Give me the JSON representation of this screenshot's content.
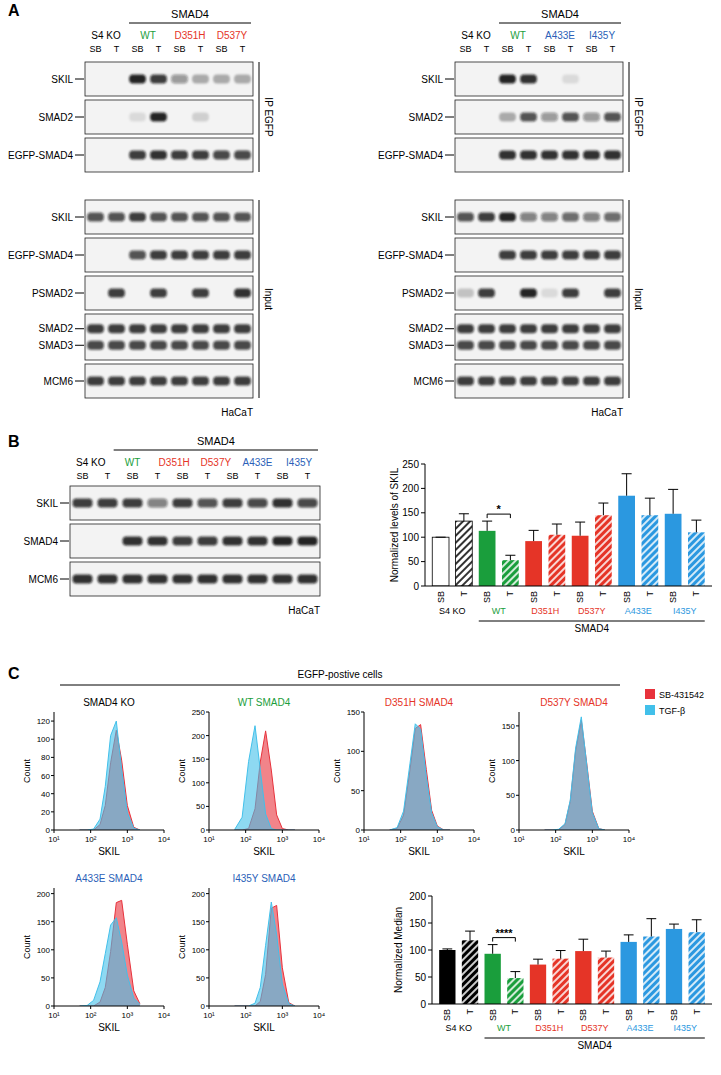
{
  "panel_labels": [
    "A",
    "B",
    "C"
  ],
  "blots": [
    {
      "header": "SMAD4",
      "header_span": [
        1,
        3
      ],
      "groups": [
        {
          "label": "S4 KO",
          "color": "#000000"
        },
        {
          "label": "WT",
          "color": "#1a9e3c"
        },
        {
          "label": "D351H",
          "color": "#e53427"
        },
        {
          "label": "D537Y",
          "color": "#e53427"
        }
      ],
      "lanes": [
        "SB",
        "T",
        "SB",
        "T",
        "SB",
        "T",
        "SB",
        "T"
      ],
      "sections": [
        {
          "label": "IP EGFP",
          "rows": [
            {
              "label": "SKIL",
              "bands": [
                0,
                0,
                0.9,
                0.8,
                0.4,
                0.3,
                0.3,
                0.3
              ]
            },
            {
              "label": "SMAD2",
              "bands": [
                0,
                0,
                0.1,
                0.9,
                0,
                0.15,
                0,
                0
              ]
            },
            {
              "label": "EGFP-SMAD4",
              "bands": [
                0,
                0,
                0.8,
                0.85,
                0.8,
                0.8,
                0.75,
                0.75
              ]
            }
          ]
        },
        {
          "label": "Input",
          "rows": [
            {
              "label": "SKIL",
              "bands": [
                0.7,
                0.7,
                0.8,
                0.7,
                0.7,
                0.7,
                0.7,
                0.7
              ]
            },
            {
              "label": "EGFP-SMAD4",
              "bands": [
                0,
                0,
                0.7,
                0.8,
                0.8,
                0.8,
                0.8,
                0.8
              ]
            },
            {
              "label": "PSMAD2",
              "bands": [
                0,
                0.8,
                0,
                0.8,
                0,
                0.8,
                0,
                0.85
              ]
            },
            {
              "labels": [
                "SMAD2",
                "SMAD3"
              ],
              "bands": [
                [
                  0.8,
                  0.8,
                  0.8,
                  0.8,
                  0.8,
                  0.8,
                  0.8,
                  0.8
                ],
                [
                  0.75,
                  0.75,
                  0.75,
                  0.75,
                  0.75,
                  0.75,
                  0.75,
                  0.75
                ]
              ]
            },
            {
              "label": "MCM6",
              "bands": [
                0.8,
                0.8,
                0.8,
                0.8,
                0.8,
                0.8,
                0.8,
                0.8
              ]
            }
          ]
        }
      ],
      "cell_line": "HaCaT"
    },
    {
      "header": "SMAD4",
      "header_span": [
        1,
        3
      ],
      "groups": [
        {
          "label": "S4 KO",
          "color": "#000000"
        },
        {
          "label": "WT",
          "color": "#1a9e3c"
        },
        {
          "label": "A433E",
          "color": "#2b5fb8"
        },
        {
          "label": "I435Y",
          "color": "#2b5fb8"
        }
      ],
      "lanes": [
        "SB",
        "T",
        "SB",
        "T",
        "SB",
        "T",
        "SB",
        "T"
      ],
      "sections": [
        {
          "label": "IP EGFP",
          "rows": [
            {
              "label": "SKIL",
              "bands": [
                0,
                0,
                0.9,
                0.85,
                0,
                0.1,
                0,
                0
              ]
            },
            {
              "label": "SMAD2",
              "bands": [
                0,
                0,
                0.3,
                0.7,
                0.4,
                0.7,
                0.4,
                0.7
              ]
            },
            {
              "label": "EGFP-SMAD4",
              "bands": [
                0,
                0,
                0.85,
                0.85,
                0.85,
                0.85,
                0.85,
                0.85
              ]
            }
          ]
        },
        {
          "label": "Input",
          "rows": [
            {
              "label": "SKIL",
              "bands": [
                0.7,
                0.8,
                0.9,
                0.5,
                0.5,
                0.6,
                0.5,
                0.6
              ]
            },
            {
              "label": "EGFP-SMAD4",
              "bands": [
                0,
                0,
                0.8,
                0.8,
                0.8,
                0.8,
                0.8,
                0.8
              ]
            },
            {
              "label": "PSMAD2",
              "bands": [
                0.2,
                0.8,
                0,
                0.9,
                0.1,
                0.8,
                0,
                0.8
              ]
            },
            {
              "labels": [
                "SMAD2",
                "SMAD3"
              ],
              "bands": [
                [
                  0.8,
                  0.8,
                  0.8,
                  0.8,
                  0.8,
                  0.8,
                  0.8,
                  0.8
                ],
                [
                  0.75,
                  0.75,
                  0.75,
                  0.75,
                  0.75,
                  0.75,
                  0.75,
                  0.75
                ]
              ]
            },
            {
              "label": "MCM6",
              "bands": [
                0.8,
                0.8,
                0.8,
                0.8,
                0.8,
                0.8,
                0.8,
                0.8
              ]
            }
          ]
        }
      ],
      "cell_line": "HaCaT"
    },
    {
      "header": "SMAD4",
      "header_span": [
        1,
        5
      ],
      "groups": [
        {
          "label": "S4 KO",
          "color": "#000000"
        },
        {
          "label": "WT",
          "color": "#1a9e3c"
        },
        {
          "label": "D351H",
          "color": "#e53427"
        },
        {
          "label": "D537Y",
          "color": "#e53427"
        },
        {
          "label": "A433E",
          "color": "#2b5fb8"
        },
        {
          "label": "I435Y",
          "color": "#2b5fb8"
        }
      ],
      "lanes": [
        "SB",
        "T",
        "SB",
        "T",
        "SB",
        "T",
        "SB",
        "T",
        "SB",
        "T"
      ],
      "sections": [
        {
          "rows": [
            {
              "label": "SKIL",
              "bands": [
                0.8,
                0.8,
                0.8,
                0.5,
                0.8,
                0.7,
                0.8,
                0.75,
                0.85,
                0.75
              ]
            },
            {
              "label": "SMAD4",
              "bands": [
                0,
                0,
                0.85,
                0.85,
                0.8,
                0.8,
                0.85,
                0.85,
                0.9,
                0.9
              ]
            },
            {
              "label": "MCM6",
              "bands": [
                0.85,
                0.85,
                0.85,
                0.85,
                0.85,
                0.85,
                0.85,
                0.85,
                0.85,
                0.85
              ]
            }
          ]
        }
      ],
      "cell_line": "HaCaT"
    }
  ],
  "flow_title": "EGFP-postive cells",
  "chart_data": [
    {
      "type": "bar",
      "y_label": "Normalized levels of SKIL",
      "categories": [
        "SB",
        "T",
        "SB",
        "T",
        "SB",
        "T",
        "SB",
        "T",
        "SB",
        "T",
        "SB",
        "T"
      ],
      "group_labels": [
        "S4 KO",
        "WT",
        "D351H",
        "D537Y",
        "A433E",
        "I435Y"
      ],
      "group_title": "SMAD4",
      "group_title_span": [
        1,
        5
      ],
      "values": [
        100,
        133,
        113,
        53,
        92,
        105,
        103,
        145,
        185,
        145,
        148,
        110
      ],
      "errors": [
        0,
        15,
        20,
        10,
        22,
        22,
        28,
        25,
        45,
        35,
        50,
        25
      ],
      "colors": [
        "#ffffff",
        "#ffffff",
        "#1a9e3c",
        "#1a9e3c",
        "#e53427",
        "#e53427",
        "#e53427",
        "#e53427",
        "#2b98e0",
        "#2b98e0",
        "#2b98e0",
        "#2b98e0"
      ],
      "ylim": [
        0,
        250
      ],
      "yticks": [
        0,
        50,
        100,
        150,
        200,
        250
      ],
      "annotations": [
        {
          "text": "*",
          "from": 2,
          "to": 3
        }
      ]
    },
    {
      "type": "bar",
      "y_label": "Normalized Median",
      "categories": [
        "SB",
        "T",
        "SB",
        "T",
        "SB",
        "T",
        "SB",
        "T",
        "SB",
        "T",
        "SB",
        "T"
      ],
      "group_labels": [
        "S4 KO",
        "WT",
        "D351H",
        "D537Y",
        "A433E",
        "I435Y"
      ],
      "group_title": "SMAD4",
      "group_title_span": [
        1,
        5
      ],
      "values": [
        100,
        118,
        93,
        48,
        73,
        84,
        98,
        86,
        115,
        125,
        139,
        133
      ],
      "errors": [
        2,
        17,
        17,
        12,
        10,
        15,
        22,
        12,
        13,
        33,
        9,
        23
      ],
      "colors": [
        "#000000",
        "#000000",
        "#1a9e3c",
        "#1a9e3c",
        "#e53427",
        "#e53427",
        "#e53427",
        "#e53427",
        "#2b98e0",
        "#2b98e0",
        "#2b98e0",
        "#2b98e0"
      ],
      "ylim": [
        0,
        200
      ],
      "yticks": [
        0,
        50,
        100,
        150,
        200
      ],
      "annotations": [
        {
          "text": "****",
          "from": 2,
          "to": 3
        }
      ]
    },
    {
      "type": "area",
      "title": "SMAD4 KO",
      "color": "#000000",
      "x_label": "SKIL",
      "y_label": "Count",
      "log": "x",
      "x": [
        50,
        80,
        120,
        180,
        250,
        350,
        500,
        700,
        1000,
        1500,
        2200
      ],
      "series": [
        {
          "name": "SB-431542",
          "color": "#e8323c",
          "values": [
            0,
            0,
            0,
            6,
            27,
            74,
            110,
            77,
            27,
            3,
            0
          ]
        },
        {
          "name": "TGF-β",
          "color": "#42c0ea",
          "values": [
            0,
            0,
            1,
            12,
            48,
            104,
            120,
            67,
            19,
            2,
            0
          ]
        }
      ],
      "xlim": [
        10,
        10000
      ],
      "xticks": [
        {
          "value": 10,
          "label": "10¹"
        },
        {
          "value": 100,
          "label": "10²"
        },
        {
          "value": 1000,
          "label": "10³"
        },
        {
          "value": 10000,
          "label": "10⁴"
        }
      ],
      "ylim": [
        0,
        130
      ],
      "yticks": [
        0,
        20,
        40,
        60,
        80,
        100,
        120
      ]
    },
    {
      "type": "area",
      "title": "WT SMAD4",
      "color": "#1a9e3c",
      "x_label": "SKIL",
      "y_label": "Count",
      "log": "x",
      "x": [
        50,
        80,
        120,
        180,
        250,
        350,
        500,
        700,
        1000,
        1500,
        2200
      ],
      "series": [
        {
          "name": "SB-431542",
          "color": "#e8323c",
          "values": [
            0,
            0,
            3,
            45,
            144,
            210,
            127,
            32,
            3,
            0,
            0
          ]
        },
        {
          "name": "TGF-β",
          "color": "#42c0ea",
          "values": [
            1,
            27,
            145,
            221,
            128,
            34,
            3,
            0,
            0,
            0,
            0
          ]
        }
      ],
      "xlim": [
        10,
        10000
      ],
      "xticks": [
        {
          "value": 10,
          "label": "10¹"
        },
        {
          "value": 100,
          "label": "10²"
        },
        {
          "value": 1000,
          "label": "10³"
        },
        {
          "value": 10000,
          "label": "10⁴"
        }
      ],
      "ylim": [
        0,
        250
      ],
      "yticks": [
        0,
        50,
        100,
        150,
        200,
        250
      ]
    },
    {
      "type": "area",
      "title": "D351H SMAD4",
      "color": "#e53427",
      "x_label": "SKIL",
      "y_label": "Count",
      "log": "x",
      "x": [
        50,
        80,
        120,
        180,
        250,
        350,
        500,
        700,
        1000,
        1500,
        2200
      ],
      "series": [
        {
          "name": "SB-431542",
          "color": "#e8323c",
          "values": [
            0,
            2,
            19,
            77,
            129,
            134,
            77,
            25,
            5,
            0,
            0
          ]
        },
        {
          "name": "TGF-β",
          "color": "#42c0ea",
          "values": [
            0,
            3,
            24,
            85,
            135,
            128,
            68,
            22,
            4,
            0,
            0
          ]
        }
      ],
      "xlim": [
        10,
        10000
      ],
      "xticks": [
        {
          "value": 10,
          "label": "10¹"
        },
        {
          "value": 100,
          "label": "10²"
        },
        {
          "value": 1000,
          "label": "10³"
        },
        {
          "value": 10000,
          "label": "10⁴"
        }
      ],
      "ylim": [
        0,
        150
      ],
      "yticks": [
        0,
        50,
        100,
        150
      ]
    },
    {
      "type": "area",
      "title": "D537Y SMAD4",
      "color": "#e53427",
      "x_label": "SKIL",
      "y_label": "Count",
      "log": "x",
      "x": [
        50,
        80,
        120,
        180,
        250,
        350,
        500,
        700,
        1000,
        1500,
        2200
      ],
      "series": [
        {
          "name": "SB-431542",
          "color": "#e8323c",
          "values": [
            0,
            0,
            0,
            8,
            41,
            114,
            158,
            97,
            27,
            2,
            0
          ]
        },
        {
          "name": "TGF-β",
          "color": "#42c0ea",
          "values": [
            0,
            0,
            1,
            9,
            43,
            118,
            163,
            95,
            25,
            2,
            0
          ]
        }
      ],
      "xlim": [
        10,
        10000
      ],
      "xticks": [
        {
          "value": 10,
          "label": "10¹"
        },
        {
          "value": 100,
          "label": "10²"
        },
        {
          "value": 1000,
          "label": "10³"
        },
        {
          "value": 10000,
          "label": "10⁴"
        }
      ],
      "ylim": [
        0,
        170
      ],
      "yticks": [
        0,
        50,
        100,
        150
      ]
    },
    {
      "type": "area",
      "title": "A433E SMAD4",
      "color": "#2b5fb8",
      "x_label": "SKIL",
      "y_label": "Count",
      "log": "x",
      "x": [
        50,
        80,
        120,
        180,
        250,
        350,
        500,
        700,
        1000,
        1500,
        2200
      ],
      "series": [
        {
          "name": "SB-431542",
          "color": "#e8323c",
          "values": [
            0,
            0,
            0,
            7,
            33,
            97,
            184,
            188,
            110,
            27,
            4
          ]
        },
        {
          "name": "TGF-β",
          "color": "#42c0ea",
          "values": [
            0,
            1,
            10,
            43,
            93,
            144,
            157,
            114,
            55,
            14,
            3
          ]
        }
      ],
      "xlim": [
        10,
        10000
      ],
      "xticks": [
        {
          "value": 10,
          "label": "10¹"
        },
        {
          "value": 100,
          "label": "10²"
        },
        {
          "value": 1000,
          "label": "10³"
        },
        {
          "value": 10000,
          "label": "10⁴"
        }
      ],
      "ylim": [
        0,
        210
      ],
      "yticks": [
        0,
        50,
        100,
        150,
        200
      ]
    },
    {
      "type": "area",
      "title": "I435Y SMAD4",
      "color": "#2b5fb8",
      "x_label": "SKIL",
      "y_label": "Count",
      "log": "x",
      "x": [
        50,
        80,
        120,
        180,
        250,
        350,
        500,
        700,
        1000,
        1500,
        2200
      ],
      "series": [
        {
          "name": "SB-431542",
          "color": "#e8323c",
          "values": [
            0,
            0,
            0,
            0,
            8,
            56,
            174,
            179,
            68,
            6,
            0
          ]
        },
        {
          "name": "TGF-β",
          "color": "#42c0ea",
          "values": [
            0,
            0,
            0,
            5,
            33,
            108,
            185,
            127,
            39,
            4,
            0
          ]
        }
      ],
      "xlim": [
        10,
        10000
      ],
      "xticks": [
        {
          "value": 10,
          "label": "10¹"
        },
        {
          "value": 100,
          "label": "10²"
        },
        {
          "value": 1000,
          "label": "10³"
        },
        {
          "value": 10000,
          "label": "10⁴"
        }
      ],
      "ylim": [
        0,
        210
      ],
      "yticks": [
        0,
        50,
        100,
        150,
        200
      ]
    }
  ]
}
